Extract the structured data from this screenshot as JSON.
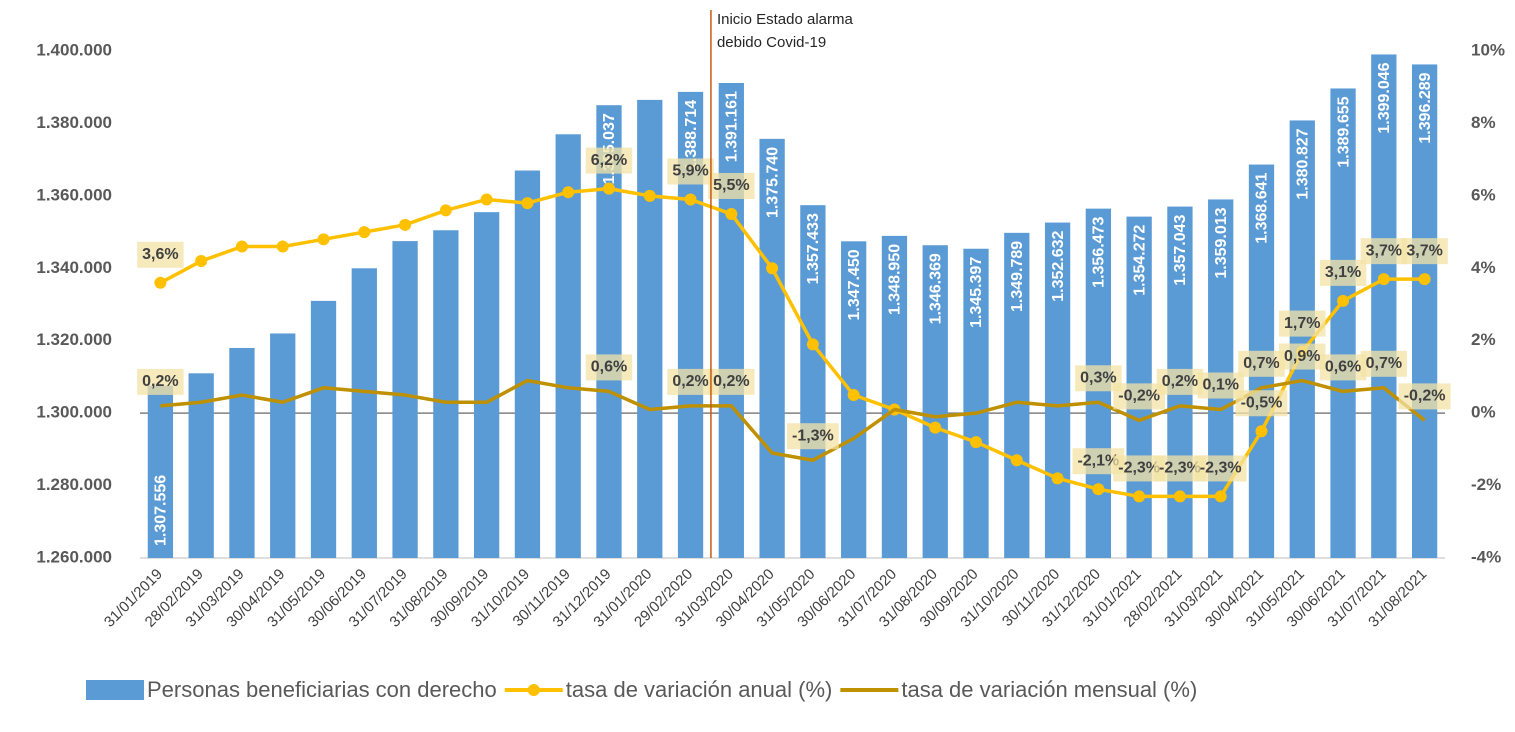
{
  "chart_data": {
    "type": "combo",
    "categories": [
      "31/01/2019",
      "28/02/2019",
      "31/03/2019",
      "30/04/2019",
      "31/05/2019",
      "30/06/2019",
      "31/07/2019",
      "31/08/2019",
      "30/09/2019",
      "31/10/2019",
      "30/11/2019",
      "31/12/2019",
      "31/01/2020",
      "29/02/2020",
      "31/03/2020",
      "30/04/2020",
      "31/05/2020",
      "30/06/2020",
      "31/07/2020",
      "31/08/2020",
      "30/09/2020",
      "31/10/2020",
      "30/11/2020",
      "31/12/2020",
      "31/01/2021",
      "28/02/2021",
      "31/03/2021",
      "30/04/2021",
      "31/05/2021",
      "30/06/2021",
      "31/07/2021",
      "31/08/2021"
    ],
    "series": [
      {
        "name": "Personas beneficiarias con derecho",
        "type": "bar",
        "axis": "y",
        "color": "#5b9bd5",
        "values": [
          1307556,
          1311000,
          1318000,
          1322000,
          1331000,
          1340000,
          1347500,
          1350500,
          1355500,
          1367000,
          1377000,
          1385037,
          1386500,
          1388714,
          1391161,
          1375740,
          1357433,
          1347450,
          1348950,
          1346369,
          1345397,
          1349789,
          1352632,
          1356473,
          1354272,
          1357043,
          1359013,
          1368641,
          1380827,
          1389655,
          1399046,
          1396289
        ],
        "value_labels": [
          "1.307.556",
          null,
          null,
          null,
          null,
          null,
          null,
          null,
          null,
          null,
          null,
          "1.385.037",
          null,
          "1.388.714",
          "1.391.161",
          "1.375.740",
          "1.357.433",
          "1.347.450",
          "1.348.950",
          "1.346.369",
          "1.345.397",
          "1.349.789",
          "1.352.632",
          "1.356.473",
          "1.354.272",
          "1.357.043",
          "1.359.013",
          "1.368.641",
          "1.380.827",
          "1.389.655",
          "1.399.046",
          "1.396.289"
        ]
      },
      {
        "name": "tasa de variación anual (%)",
        "type": "line",
        "axis": "y2",
        "color": "#ffc000",
        "markers": true,
        "values": [
          3.6,
          4.2,
          4.6,
          4.6,
          4.8,
          5.0,
          5.2,
          5.6,
          5.9,
          5.8,
          6.1,
          6.2,
          6.0,
          5.9,
          5.5,
          4.0,
          1.9,
          0.5,
          0.1,
          -0.4,
          -0.8,
          -1.3,
          -1.8,
          -2.1,
          -2.3,
          -2.3,
          -2.3,
          -0.5,
          1.7,
          3.1,
          3.7,
          3.7
        ],
        "value_labels": [
          "3,6%",
          null,
          null,
          null,
          null,
          null,
          null,
          null,
          null,
          null,
          null,
          "6,2%",
          null,
          "5,9%",
          "5,5%",
          null,
          null,
          null,
          null,
          null,
          null,
          null,
          null,
          "-2,1%",
          "-2,3%",
          "-2,3%",
          "-2,3%",
          "-0,5%",
          "1,7%",
          "3,1%",
          "3,7%",
          "3,7%"
        ]
      },
      {
        "name": "tasa de variación mensual (%)",
        "type": "line",
        "axis": "y2",
        "color": "#bf9000",
        "markers": false,
        "values": [
          0.2,
          0.3,
          0.5,
          0.3,
          0.7,
          0.6,
          0.5,
          0.3,
          0.3,
          0.9,
          0.7,
          0.6,
          0.1,
          0.2,
          0.2,
          -1.1,
          -1.3,
          -0.7,
          0.1,
          -0.1,
          0.0,
          0.3,
          0.2,
          0.3,
          -0.2,
          0.2,
          0.1,
          0.7,
          0.9,
          0.6,
          0.7,
          -0.2
        ],
        "value_labels": [
          "0,2%",
          null,
          null,
          null,
          null,
          null,
          null,
          null,
          null,
          null,
          null,
          "0,6%",
          null,
          "0,2%",
          "0,2%",
          null,
          "-1,3%",
          null,
          null,
          null,
          null,
          null,
          null,
          "0,3%",
          "-0,2%",
          "0,2%",
          "0,1%",
          "0,7%",
          "0,9%",
          "0,6%",
          "0,7%",
          "-0,2%"
        ]
      }
    ],
    "ylim": [
      1260000,
      1400000
    ],
    "yticks": [
      {
        "value": 1260000,
        "label": "1.260.000"
      },
      {
        "value": 1280000,
        "label": "1.280.000"
      },
      {
        "value": 1300000,
        "label": "1.300.000"
      },
      {
        "value": 1320000,
        "label": "1.320.000"
      },
      {
        "value": 1340000,
        "label": "1.340.000"
      },
      {
        "value": 1360000,
        "label": "1.360.000"
      },
      {
        "value": 1380000,
        "label": "1.380.000"
      },
      {
        "value": 1400000,
        "label": "1.400.000"
      }
    ],
    "y2lim": [
      -4,
      10
    ],
    "y2ticks": [
      {
        "value": -4,
        "label": "-4%"
      },
      {
        "value": -2,
        "label": "-2%"
      },
      {
        "value": 0,
        "label": "0%"
      },
      {
        "value": 2,
        "label": "2%"
      },
      {
        "value": 4,
        "label": "4%"
      },
      {
        "value": 6,
        "label": "6%"
      },
      {
        "value": 8,
        "label": "8%"
      },
      {
        "value": 10,
        "label": "10%"
      }
    ],
    "annotation": [
      "Inicio Estado alarma",
      "debido Covid-19"
    ],
    "legend": "bottom"
  }
}
